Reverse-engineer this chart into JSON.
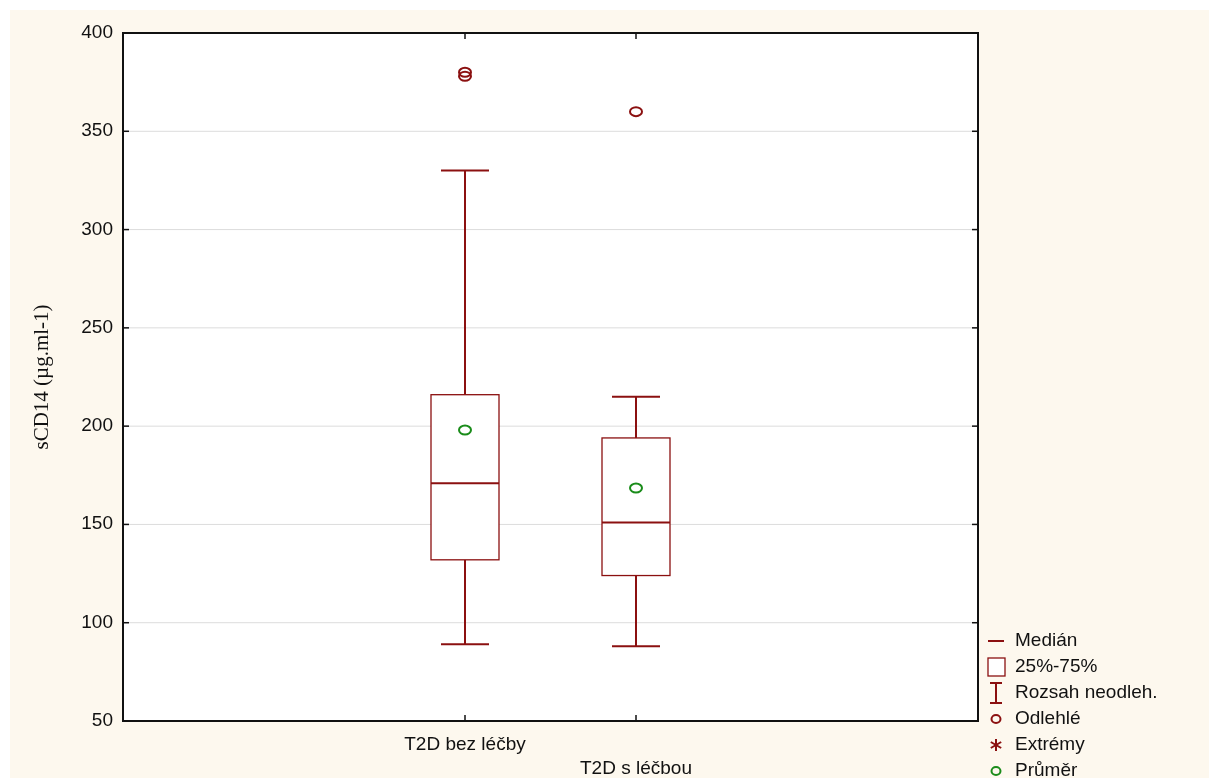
{
  "chart_data": {
    "type": "box",
    "ylabel": "sCD14 (µg.ml-1)",
    "categories": [
      "T2D bez léčby",
      "T2D s léčbou"
    ],
    "series": [
      {
        "color": "#8b1010",
        "boxes": [
          {
            "low": 89,
            "q1": 132,
            "median": 171,
            "q3": 216,
            "high": 330,
            "outliers": [
              378,
              380
            ]
          },
          {
            "low": 88,
            "q1": 124,
            "median": 151,
            "q3": 194,
            "high": 215,
            "outliers": [
              360
            ]
          }
        ]
      },
      {
        "type": "scatter",
        "color": "#1a8c1a",
        "x": [
          "T2D bez léčby",
          "T2D s léčbou"
        ],
        "values": [
          198,
          168.5
        ],
        "marker": "circle"
      }
    ],
    "ylim": [
      50,
      400
    ],
    "yticks": [
      50,
      100,
      150,
      200,
      250,
      300,
      350,
      400
    ],
    "grid": "y",
    "annotations": [
      "Medián",
      "25%-75%",
      "Rozsah neodleh.",
      "Odlehlé",
      "Extrémy",
      "Průměr"
    ]
  }
}
